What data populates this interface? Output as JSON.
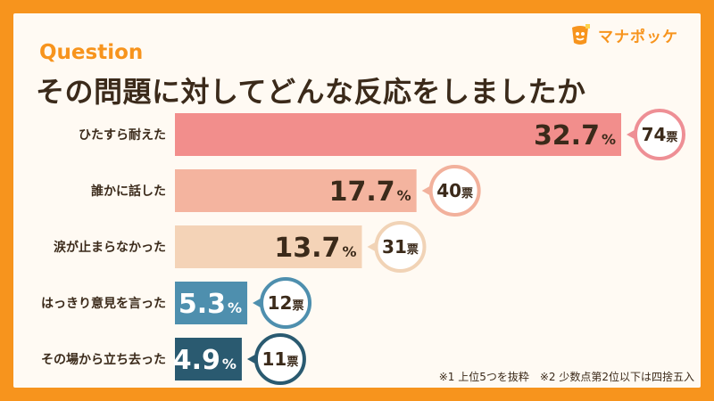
{
  "brand": {
    "name": "マナポッケ",
    "accent": "#F7941D"
  },
  "header": {
    "question_label": "Question",
    "title": "その問題に対してどんな反応をしましたか"
  },
  "chart_data": {
    "type": "bar",
    "orientation": "horizontal",
    "categories": [
      "ひたすら耐えた",
      "誰かに話した",
      "涙が止まらなかった",
      "はっきり意見を言った",
      "その場から立ち去った"
    ],
    "values": [
      32.7,
      17.7,
      13.7,
      5.3,
      4.9
    ],
    "value_unit": "%",
    "votes": [
      74,
      40,
      31,
      12,
      11
    ],
    "vote_unit": "票",
    "colors": [
      "#F28E8C",
      "#F4B49F",
      "#F4D3B7",
      "#4E8FAE",
      "#2A5A70"
    ],
    "bubble_border_colors": [
      "#EE8F95",
      "#F2B19C",
      "#F1D3B6",
      "#4E8FAE",
      "#2A5A70"
    ],
    "label_colors": [
      "#3B2A1A",
      "#3B2A1A",
      "#3B2A1A",
      "#FFFFFF",
      "#FFFFFF"
    ]
  },
  "footnote": "※1 上位5つを抜粋　※2 少数点第2位以下は四捨五入"
}
